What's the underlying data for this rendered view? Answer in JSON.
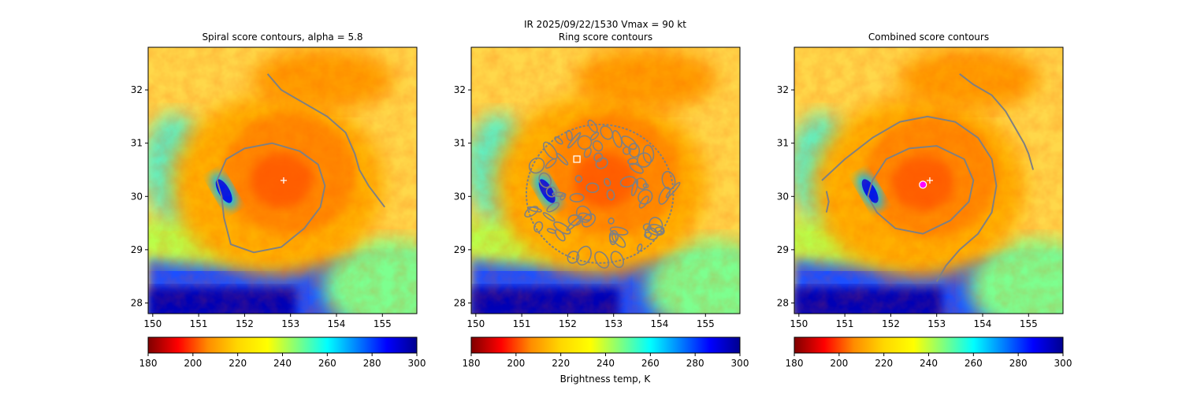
{
  "figure": {
    "suptitle": "IR  2025/09/22/1530    Vmax = 90 kt",
    "colorbar_label": "Brightness temp, K",
    "colormap_stops": [
      "#7f0000",
      "#ff0000",
      "#ff8c00",
      "#ffd700",
      "#ffff00",
      "#7fff7f",
      "#00ffff",
      "#0080ff",
      "#0000ff",
      "#00008f"
    ],
    "contour_color": "#808080",
    "marker_color": "#ffffff",
    "center_marker_color": "#ff00ff"
  },
  "chart_data": [
    {
      "type": "heatmap",
      "title": "Spiral score contours, alpha =  5.8",
      "xlim": [
        149.9,
        155.75
      ],
      "ylim": [
        27.8,
        32.8
      ],
      "xticks": [
        150,
        151,
        152,
        153,
        154,
        155
      ],
      "yticks": [
        28,
        29,
        30,
        31,
        32
      ],
      "colorbar": {
        "vmin": 180,
        "vmax": 300,
        "ticks": [
          180,
          200,
          220,
          240,
          260,
          280,
          300
        ]
      },
      "storm_center": [
        152.8,
        30.3
      ],
      "markers": [
        {
          "kind": "plus",
          "x": 152.85,
          "y": 30.3
        }
      ],
      "contours": [
        [
          [
            152.5,
            32.3
          ],
          [
            152.8,
            32.0
          ],
          [
            153.4,
            31.7
          ],
          [
            153.8,
            31.5
          ],
          [
            154.2,
            31.2
          ],
          [
            154.4,
            30.8
          ],
          [
            154.5,
            30.5
          ],
          [
            154.7,
            30.2
          ],
          [
            155.05,
            29.8
          ]
        ],
        [
          [
            151.4,
            30.3
          ],
          [
            151.6,
            30.7
          ],
          [
            152.0,
            30.9
          ],
          [
            152.6,
            31.0
          ],
          [
            153.2,
            30.85
          ],
          [
            153.6,
            30.6
          ],
          [
            153.75,
            30.2
          ],
          [
            153.65,
            29.8
          ],
          [
            153.3,
            29.4
          ],
          [
            152.8,
            29.05
          ],
          [
            152.2,
            28.95
          ],
          [
            151.7,
            29.1
          ],
          [
            151.55,
            29.6
          ],
          [
            151.5,
            30.0
          ],
          [
            151.4,
            30.3
          ]
        ]
      ]
    },
    {
      "type": "heatmap",
      "title": "Ring score contours",
      "xlim": [
        149.9,
        155.75
      ],
      "ylim": [
        27.8,
        32.8
      ],
      "xticks": [
        150,
        151,
        152,
        153,
        154,
        155
      ],
      "yticks": [
        28,
        29,
        30,
        31,
        32
      ],
      "colorbar": {
        "vmin": 180,
        "vmax": 300,
        "ticks": [
          180,
          200,
          220,
          240,
          260,
          280,
          300
        ]
      },
      "storm_center": [
        152.8,
        30.3
      ],
      "markers": [
        {
          "kind": "square",
          "x": 152.2,
          "y": 30.7
        }
      ],
      "ring_region": {
        "center": [
          152.7,
          30.05
        ],
        "rx": 1.6,
        "ry": 1.3
      }
    },
    {
      "type": "heatmap",
      "title": "Combined score contours",
      "xlim": [
        149.9,
        155.75
      ],
      "ylim": [
        27.8,
        32.8
      ],
      "xticks": [
        150,
        151,
        152,
        153,
        154,
        155
      ],
      "yticks": [
        28,
        29,
        30,
        31,
        32
      ],
      "colorbar": {
        "vmin": 180,
        "vmax": 300,
        "ticks": [
          180,
          200,
          220,
          240,
          260,
          280,
          300
        ]
      },
      "storm_center": [
        152.7,
        30.25
      ],
      "markers": [
        {
          "kind": "plus",
          "x": 152.85,
          "y": 30.3
        },
        {
          "kind": "circle",
          "x": 152.7,
          "y": 30.22
        }
      ],
      "contours": [
        [
          [
            153.5,
            32.3
          ],
          [
            153.8,
            32.1
          ],
          [
            154.2,
            31.9
          ],
          [
            154.5,
            31.6
          ],
          [
            154.7,
            31.3
          ],
          [
            154.9,
            31.0
          ],
          [
            155.0,
            30.8
          ],
          [
            155.1,
            30.5
          ]
        ],
        [
          [
            150.5,
            30.3
          ],
          [
            151.0,
            30.7
          ],
          [
            151.6,
            31.1
          ],
          [
            152.2,
            31.4
          ],
          [
            152.8,
            31.5
          ],
          [
            153.4,
            31.4
          ],
          [
            153.9,
            31.1
          ],
          [
            154.2,
            30.7
          ],
          [
            154.3,
            30.2
          ],
          [
            154.2,
            29.7
          ],
          [
            153.9,
            29.3
          ],
          [
            153.5,
            29.0
          ],
          [
            153.2,
            28.7
          ],
          [
            153.0,
            28.4
          ]
        ],
        [
          [
            151.6,
            30.3
          ],
          [
            151.9,
            30.7
          ],
          [
            152.4,
            30.9
          ],
          [
            153.0,
            30.95
          ],
          [
            153.6,
            30.7
          ],
          [
            153.8,
            30.3
          ],
          [
            153.7,
            29.9
          ],
          [
            153.3,
            29.55
          ],
          [
            152.7,
            29.3
          ],
          [
            152.1,
            29.4
          ],
          [
            151.7,
            29.7
          ],
          [
            151.5,
            30.0
          ],
          [
            151.6,
            30.3
          ]
        ],
        [
          [
            150.6,
            30.1
          ],
          [
            150.65,
            29.9
          ],
          [
            150.6,
            29.7
          ]
        ]
      ]
    }
  ]
}
